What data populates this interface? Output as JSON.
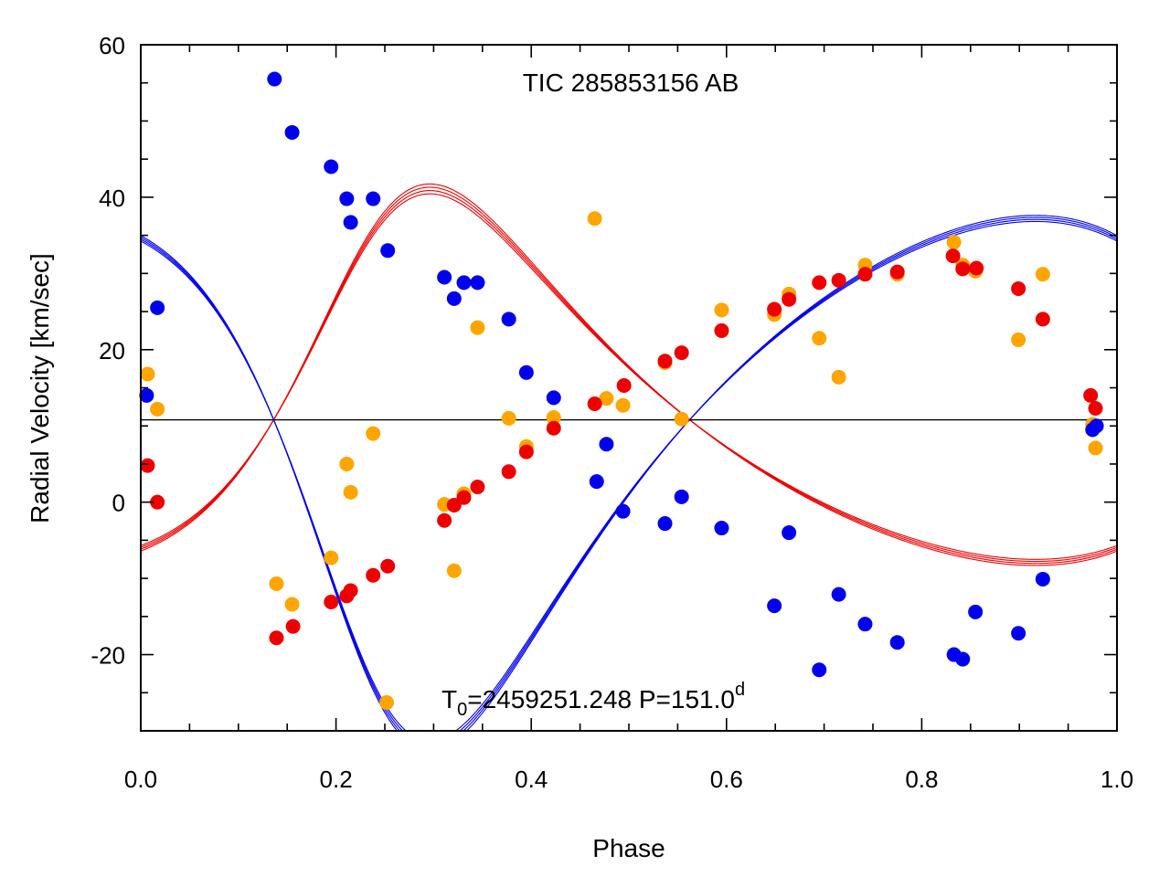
{
  "chart_data": {
    "type": "scatter",
    "title": "TIC 285853156 AB",
    "xlabel": "Phase",
    "ylabel": "Radial Velocity [km/sec]",
    "xlim": [
      0.0,
      1.0
    ],
    "ylim": [
      -30,
      60
    ],
    "xticks": [
      0.0,
      0.2,
      0.4,
      0.6,
      0.8,
      1.0
    ],
    "xtick_labels": [
      "0.0",
      "0.2",
      "0.4",
      "0.6",
      "0.8",
      "1.0"
    ],
    "yticks": [
      -20,
      0,
      20,
      40,
      60
    ],
    "ytick_labels": [
      "-20",
      "0",
      "20",
      "40",
      "60"
    ],
    "systemic_velocity": 10.8,
    "annotation": {
      "t0_label": "T",
      "t0_subscript": "0",
      "t0_value": "=2459251.248 P=151.0",
      "period_unit": "d",
      "marker_color": "#ffa500"
    },
    "colors": {
      "primary": "#0000ee",
      "secondary": "#ee0000",
      "third": "#ffa500",
      "axis": "#000000"
    },
    "series": [
      {
        "name": "primary",
        "color": "#0000ee",
        "x": [
          0.006,
          0.017,
          0.137,
          0.155,
          0.195,
          0.211,
          0.215,
          0.238,
          0.253,
          0.311,
          0.321,
          0.331,
          0.345,
          0.377,
          0.395,
          0.423,
          0.467,
          0.477,
          0.494,
          0.537,
          0.554,
          0.595,
          0.649,
          0.664,
          0.695,
          0.715,
          0.742,
          0.775,
          0.833,
          0.842,
          0.855,
          0.899,
          0.924,
          0.975,
          0.979
        ],
        "y": [
          14.0,
          25.5,
          55.5,
          48.5,
          44.0,
          39.8,
          36.7,
          39.8,
          33.0,
          29.5,
          26.7,
          28.8,
          28.8,
          24.0,
          17.0,
          13.7,
          2.7,
          7.6,
          -1.2,
          -2.8,
          0.7,
          -3.4,
          -13.6,
          -4.0,
          -22.0,
          -12.1,
          -16.0,
          -18.4,
          -20.0,
          -20.6,
          -14.4,
          -17.2,
          -10.1,
          9.5,
          10.0
        ]
      },
      {
        "name": "secondary",
        "color": "#ee0000",
        "x": [
          0.007,
          0.017,
          0.139,
          0.156,
          0.195,
          0.211,
          0.215,
          0.238,
          0.253,
          0.311,
          0.321,
          0.331,
          0.345,
          0.377,
          0.395,
          0.423,
          0.465,
          0.495,
          0.537,
          0.554,
          0.595,
          0.649,
          0.664,
          0.695,
          0.715,
          0.742,
          0.775,
          0.832,
          0.842,
          0.856,
          0.899,
          0.924,
          0.973,
          0.978
        ],
        "y": [
          4.8,
          0.0,
          -17.8,
          -16.3,
          -13.1,
          -12.3,
          -11.6,
          -9.6,
          -8.4,
          -2.4,
          -0.4,
          0.6,
          2.0,
          4.0,
          6.6,
          9.7,
          12.9,
          15.3,
          18.5,
          19.6,
          22.5,
          25.3,
          26.6,
          28.8,
          29.1,
          29.9,
          30.2,
          32.3,
          30.6,
          30.7,
          28.0,
          24.0,
          14.0,
          12.3
        ]
      },
      {
        "name": "third",
        "color": "#ffa500",
        "x": [
          0.007,
          0.017,
          0.139,
          0.155,
          0.195,
          0.211,
          0.215,
          0.238,
          0.311,
          0.321,
          0.331,
          0.345,
          0.377,
          0.395,
          0.423,
          0.465,
          0.477,
          0.494,
          0.537,
          0.554,
          0.595,
          0.649,
          0.664,
          0.695,
          0.715,
          0.742,
          0.775,
          0.833,
          0.842,
          0.855,
          0.899,
          0.924,
          0.975,
          0.978
        ],
        "y": [
          16.8,
          12.2,
          -10.7,
          -13.4,
          -7.3,
          5.0,
          1.3,
          9.0,
          -0.3,
          -9.0,
          1.1,
          22.9,
          11.0,
          7.3,
          11.1,
          37.2,
          13.6,
          12.7,
          18.3,
          10.9,
          25.2,
          24.6,
          27.3,
          21.5,
          16.4,
          31.1,
          29.9,
          34.1,
          31.1,
          30.3,
          21.3,
          29.9,
          10.2,
          7.1
        ]
      }
    ],
    "models": [
      {
        "name": "primary-orbit",
        "color": "#0000ee",
        "K": 34.6,
        "gamma": 10.8,
        "e": 0.3,
        "omega_deg": 142,
        "tp": 0.24,
        "copies": 4
      },
      {
        "name": "secondary-orbit",
        "color": "#ee0000",
        "K": 24.5,
        "gamma": 10.8,
        "e": 0.3,
        "omega_deg": 322,
        "tp": 0.24,
        "copies": 4
      }
    ]
  }
}
